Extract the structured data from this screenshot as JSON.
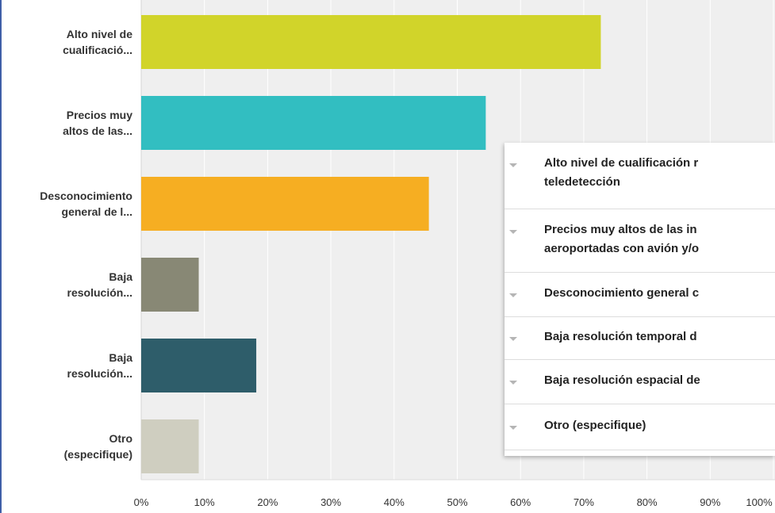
{
  "chart_data": {
    "type": "bar",
    "orientation": "horizontal",
    "categories": [
      [
        "Alto nivel de",
        "cualificació..."
      ],
      [
        "Precios muy",
        "altos de las..."
      ],
      [
        "Desconocimiento",
        "general de l..."
      ],
      [
        "Baja",
        "resolución..."
      ],
      [
        "Baja",
        "resolución..."
      ],
      [
        "Otro",
        "(especifique)"
      ]
    ],
    "values": [
      72.7,
      54.5,
      45.5,
      9.1,
      18.2,
      9.1
    ],
    "colors": [
      "#d1d42a",
      "#32bec1",
      "#f6ae22",
      "#888875",
      "#2e5d6a",
      "#cfcec0"
    ],
    "xlim": [
      0,
      100
    ],
    "ticks": [
      "0%",
      "10%",
      "20%",
      "30%",
      "40%",
      "50%",
      "60%",
      "70%",
      "80%",
      "90%",
      "100%"
    ],
    "grid": true,
    "legend": {
      "placement": "right",
      "entries": [
        [
          "Alto nivel de cualificación r",
          "teledetección"
        ],
        [
          "Precios muy altos de las in",
          "aeroportadas con avión y/o"
        ],
        [
          "Desconocimiento general c"
        ],
        [
          "Baja resolución temporal d"
        ],
        [
          "Baja resolución espacial de"
        ],
        [
          "Otro (especifique)"
        ]
      ]
    },
    "background_color": "#efefef",
    "grid_color": "#ffffff"
  }
}
